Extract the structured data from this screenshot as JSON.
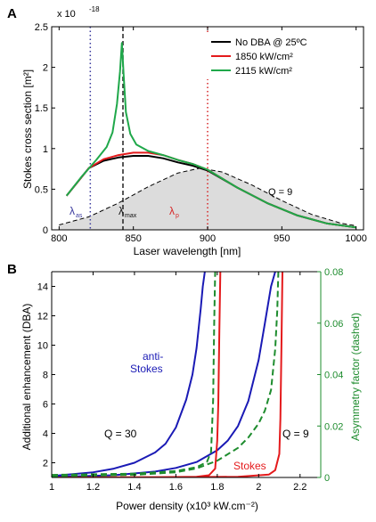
{
  "chart_data": [
    {
      "panel": "A",
      "type": "line",
      "xlabel": "Laser wavelength [nm]",
      "ylabel": "Stokes cross section [m²]",
      "y_multiplier": "x 10",
      "y_exponent": "-18",
      "xlim": [
        795,
        1005
      ],
      "ylim": [
        0,
        2.5
      ],
      "xticks": [
        800,
        850,
        900,
        950,
        1000
      ],
      "yticks": [
        0,
        0.5,
        1,
        1.5,
        2,
        2.5
      ],
      "legend_position": "top-right",
      "series": [
        {
          "name": "No DBA @ 25ºC",
          "color": "#000000",
          "x": [
            805,
            820,
            830,
            840,
            850,
            860,
            870,
            880,
            890,
            900,
            920,
            940,
            960,
            980,
            1000
          ],
          "y": [
            0.42,
            0.76,
            0.85,
            0.89,
            0.91,
            0.91,
            0.88,
            0.83,
            0.79,
            0.73,
            0.52,
            0.33,
            0.18,
            0.08,
            0.03
          ]
        },
        {
          "name": "1850 kW/cm²",
          "color": "#e41a1c",
          "x": [
            805,
            820,
            830,
            840,
            850,
            860,
            870,
            880,
            890,
            900,
            920,
            940,
            960,
            980,
            1000
          ],
          "y": [
            0.42,
            0.76,
            0.87,
            0.92,
            0.95,
            0.95,
            0.92,
            0.86,
            0.81,
            0.74,
            0.52,
            0.33,
            0.18,
            0.08,
            0.03
          ]
        },
        {
          "name": "2115 kW/cm²",
          "color": "#1fa84a",
          "x": [
            805,
            815,
            825,
            832,
            836,
            839,
            841,
            842.3,
            843.5,
            845,
            848,
            852,
            860,
            870,
            880,
            890,
            900,
            920,
            940,
            960,
            980,
            1000
          ],
          "y": [
            0.42,
            0.65,
            0.86,
            1.02,
            1.2,
            1.55,
            1.95,
            2.3,
            1.9,
            1.45,
            1.18,
            1.05,
            0.97,
            0.92,
            0.86,
            0.81,
            0.74,
            0.52,
            0.33,
            0.18,
            0.08,
            0.03
          ]
        }
      ],
      "shaded_curve": {
        "name": "",
        "color": "#000000",
        "fill": "#dcdcdc",
        "x": [
          800,
          820,
          840,
          860,
          880,
          895,
          910,
          930,
          950,
          970,
          990,
          1000
        ],
        "y": [
          0.06,
          0.16,
          0.33,
          0.53,
          0.7,
          0.76,
          0.71,
          0.55,
          0.36,
          0.19,
          0.08,
          0.05
        ]
      },
      "vlines": [
        {
          "x": 821,
          "color": "#3a3a9e",
          "style": "dotted"
        },
        {
          "x": 843,
          "color": "#222222",
          "style": "dashed"
        },
        {
          "x": 900,
          "color": "#d62728",
          "style": "dotted"
        }
      ],
      "annotations": {
        "q_label": "Q = 9",
        "lambda_as": "λ",
        "lambda_as_sub": "as",
        "lambda_max": "λ",
        "lambda_max_sub": "max",
        "lambda_p": "λ",
        "lambda_p_sub": "p"
      }
    },
    {
      "panel": "B",
      "type": "line",
      "xlabel": "Power density (x10³ kW.cm⁻²)",
      "ylabel": "Additional enhancement (DBA)",
      "y2label": "Asymmetry factor (dashed)",
      "xlim": [
        1.0,
        2.3
      ],
      "ylim": [
        1,
        15
      ],
      "y2lim": [
        0,
        0.08
      ],
      "xticks": [
        1,
        1.2,
        1.4,
        1.6,
        1.8,
        2,
        2.2
      ],
      "yticks": [
        2,
        4,
        6,
        8,
        10,
        12,
        14
      ],
      "y2ticks": [
        0,
        0.02,
        0.04,
        0.06,
        0.08
      ],
      "series": [
        {
          "group": "anti-Stokes Q = 30",
          "color": "#1a1ab5",
          "axis": "left",
          "x": [
            1.0,
            1.2,
            1.3,
            1.4,
            1.5,
            1.55,
            1.6,
            1.65,
            1.68,
            1.7,
            1.72,
            1.73,
            1.74
          ],
          "y": [
            1.1,
            1.35,
            1.6,
            2.0,
            2.7,
            3.3,
            4.4,
            6.3,
            8.0,
            9.8,
            12.5,
            14.0,
            15.0
          ]
        },
        {
          "group": "anti-Stokes Q = 9",
          "color": "#1a1ab5",
          "axis": "left",
          "x": [
            1.0,
            1.3,
            1.5,
            1.6,
            1.7,
            1.8,
            1.85,
            1.9,
            1.95,
            2.0,
            2.03,
            2.06,
            2.08
          ],
          "y": [
            1.03,
            1.15,
            1.4,
            1.65,
            2.05,
            2.85,
            3.5,
            4.5,
            6.2,
            9.0,
            11.5,
            14.0,
            15.0
          ]
        },
        {
          "group": "Stokes Q = 30",
          "color": "#e41a1c",
          "axis": "left",
          "x": [
            1.0,
            1.5,
            1.7,
            1.76,
            1.79,
            1.8,
            1.805,
            1.81,
            1.815
          ],
          "y": [
            1.0,
            1.02,
            1.05,
            1.15,
            1.6,
            3.5,
            6.0,
            11.0,
            15.0
          ]
        },
        {
          "group": "Stokes Q = 9",
          "color": "#e41a1c",
          "axis": "left",
          "x": [
            1.0,
            1.6,
            1.9,
            2.05,
            2.08,
            2.1,
            2.105,
            2.11,
            2.115
          ],
          "y": [
            1.0,
            1.01,
            1.05,
            1.2,
            1.5,
            2.6,
            5.0,
            10.0,
            15.0
          ]
        },
        {
          "group": "asymmetry Q = 30",
          "color": "#1e8c2e",
          "axis": "right",
          "style": "dashed",
          "x": [
            1.0,
            1.4,
            1.6,
            1.7,
            1.75,
            1.77,
            1.78,
            1.785,
            1.79
          ],
          "y": [
            0.001,
            0.0015,
            0.0025,
            0.004,
            0.006,
            0.01,
            0.03,
            0.06,
            0.08
          ]
        },
        {
          "group": "asymmetry Q = 9",
          "color": "#1e8c2e",
          "axis": "right",
          "style": "dashed",
          "x": [
            1.0,
            1.4,
            1.6,
            1.7,
            1.8,
            1.9,
            1.95,
            2.0,
            2.03,
            2.06,
            2.08,
            2.09,
            2.095
          ],
          "y": [
            0.0005,
            0.001,
            0.002,
            0.0035,
            0.0065,
            0.0115,
            0.0155,
            0.021,
            0.026,
            0.034,
            0.05,
            0.065,
            0.08
          ]
        }
      ],
      "annotations": {
        "anti_stokes_line1": "anti-",
        "anti_stokes_line2": "Stokes",
        "stokes": "Stokes",
        "q30": "Q = 30",
        "q9": "Q = 9"
      }
    }
  ],
  "panel_labels": {
    "a": "A",
    "b": "B"
  }
}
